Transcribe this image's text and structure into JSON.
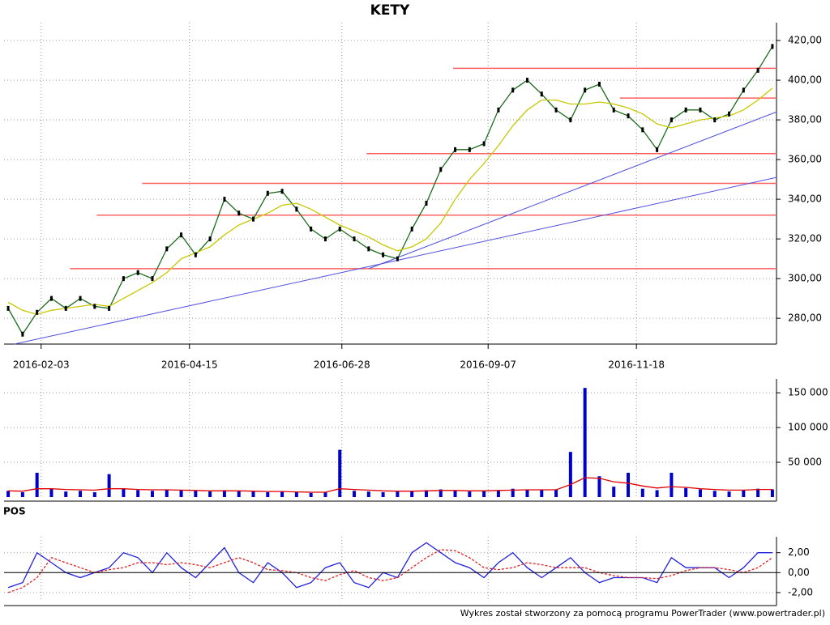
{
  "footer": "Wykres został stworzony za pomocą programu PowerTrader (www.powertrader.pl)",
  "chart_data": [
    {
      "type": "line",
      "title": "KETY",
      "x": [
        "2016-01-18",
        "2016-01-25",
        "2016-02-01",
        "2016-02-08",
        "2016-02-15",
        "2016-02-22",
        "2016-02-29",
        "2016-03-07",
        "2016-03-14",
        "2016-03-21",
        "2016-03-28",
        "2016-04-04",
        "2016-04-11",
        "2016-04-18",
        "2016-04-25",
        "2016-05-02",
        "2016-05-09",
        "2016-05-16",
        "2016-05-23",
        "2016-05-30",
        "2016-06-06",
        "2016-06-13",
        "2016-06-20",
        "2016-06-27",
        "2016-07-04",
        "2016-07-11",
        "2016-07-18",
        "2016-07-25",
        "2016-08-01",
        "2016-08-08",
        "2016-08-15",
        "2016-08-22",
        "2016-08-29",
        "2016-09-05",
        "2016-09-12",
        "2016-09-19",
        "2016-09-26",
        "2016-10-03",
        "2016-10-10",
        "2016-10-17",
        "2016-10-24",
        "2016-10-31",
        "2016-11-07",
        "2016-11-14",
        "2016-11-21",
        "2016-11-28",
        "2016-12-05",
        "2016-12-12",
        "2016-12-19",
        "2016-12-26",
        "2017-01-02",
        "2017-01-09",
        "2017-01-16",
        "2017-01-23"
      ],
      "series": [
        {
          "color": "#1a6b1a",
          "values": [
            285,
            272,
            283,
            290,
            285,
            290,
            286,
            285,
            300,
            303,
            300,
            315,
            322,
            312,
            320,
            340,
            333,
            330,
            343,
            344,
            335,
            325,
            320,
            325,
            320,
            315,
            312,
            310,
            325,
            338,
            355,
            365,
            365,
            368,
            385,
            395,
            400,
            393,
            385,
            380,
            395,
            398,
            385,
            382,
            375,
            365,
            380,
            385,
            385,
            380,
            383,
            395,
            405,
            417
          ]
        },
        {
          "color": "#c8c800",
          "values": [
            288,
            284,
            282,
            284,
            285,
            286,
            287,
            286,
            290,
            294,
            298,
            303,
            310,
            313,
            316,
            322,
            327,
            330,
            333,
            337,
            338,
            335,
            331,
            327,
            324,
            321,
            317,
            314,
            316,
            320,
            328,
            340,
            350,
            358,
            367,
            377,
            385,
            390,
            390,
            388,
            388,
            389,
            388,
            386,
            383,
            378,
            376,
            378,
            380,
            381,
            382,
            385,
            390,
            396
          ]
        }
      ],
      "xlim": [
        "2016-01-16",
        "2017-01-25"
      ],
      "xticks": [
        "2016-02-03",
        "2016-04-15",
        "2016-06-28",
        "2016-09-07",
        "2016-11-18"
      ],
      "ylim": [
        267,
        429
      ],
      "yticks": [
        {
          "value": 280,
          "label": "280,00"
        },
        {
          "value": 300,
          "label": "300,00"
        },
        {
          "value": 320,
          "label": "320,00"
        },
        {
          "value": 340,
          "label": "340,00"
        },
        {
          "value": 360,
          "label": "360,00"
        },
        {
          "value": 380,
          "label": "380,00"
        },
        {
          "value": 400,
          "label": "400,00"
        },
        {
          "value": 420,
          "label": "420,00"
        }
      ],
      "grid": true,
      "hline_color": "#ff6060",
      "hlines": [
        {
          "value": 406,
          "from": "2016-08-21"
        },
        {
          "value": 391,
          "from": "2016-11-10"
        },
        {
          "value": 363,
          "from": "2016-07-10"
        },
        {
          "value": 348,
          "from": "2016-03-23"
        },
        {
          "value": 332,
          "from": "2016-03-01"
        },
        {
          "value": 305,
          "from": "2016-02-17"
        }
      ],
      "trend_color": "#5050e0",
      "trendlines": [
        {
          "x": [
            "2016-01-21",
            "2017-01-25"
          ],
          "y": [
            267,
            351
          ]
        },
        {
          "x": [
            "2016-07-11",
            "2017-01-25"
          ],
          "y": [
            305,
            384
          ]
        }
      ]
    },
    {
      "type": "bar",
      "values": [
        9000,
        7000,
        35000,
        12000,
        8000,
        9000,
        7000,
        33000,
        12000,
        10000,
        9000,
        11000,
        10000,
        9000,
        8000,
        10000,
        9000,
        8000,
        7000,
        8000,
        7000,
        6000,
        7000,
        68000,
        9000,
        8000,
        7000,
        8000,
        9000,
        10000,
        11000,
        9000,
        8000,
        9000,
        10000,
        12000,
        11000,
        10000,
        11000,
        65000,
        157000,
        30000,
        15000,
        35000,
        12000,
        10000,
        35000,
        13000,
        11000,
        9000,
        8000,
        10000,
        12000,
        11000
      ],
      "color": "#0000cc",
      "ma": [
        9000,
        8500,
        12000,
        12000,
        11000,
        10500,
        10000,
        12000,
        12000,
        11000,
        10500,
        10500,
        10000,
        9500,
        9000,
        9000,
        9000,
        8500,
        8000,
        8000,
        7500,
        7000,
        7000,
        12000,
        11000,
        10000,
        9000,
        8500,
        8500,
        9000,
        9500,
        9500,
        9000,
        9000,
        9500,
        10000,
        10500,
        10500,
        10500,
        18000,
        28000,
        27000,
        22000,
        20000,
        16000,
        13000,
        15000,
        14000,
        12000,
        11000,
        10000,
        10000,
        11000,
        11000
      ],
      "ma_color": "#e00000",
      "ylim": [
        0,
        170000
      ],
      "yticks": [
        {
          "value": 50000,
          "label": "50 000"
        },
        {
          "value": 100000,
          "label": "100 000"
        },
        {
          "value": 150000,
          "label": "150 000"
        }
      ],
      "grid": true
    },
    {
      "type": "line",
      "title": "POS",
      "series": [
        {
          "color": "#2020e0",
          "values": [
            -1.5,
            -1,
            2,
            1,
            0,
            -0.5,
            0,
            0.5,
            2,
            1.5,
            0,
            2,
            0.5,
            -0.5,
            1,
            2.5,
            0,
            -1,
            1,
            0,
            -1.5,
            -1,
            0.5,
            1,
            -1,
            -1.5,
            0,
            -0.5,
            2,
            3,
            2,
            1,
            0.5,
            -0.5,
            1,
            2,
            0.5,
            -0.5,
            0.5,
            1.5,
            0,
            -1,
            -0.5,
            -0.5,
            -0.5,
            -1,
            1.5,
            0.5,
            0.5,
            0.5,
            -0.5,
            0.5,
            2,
            2
          ]
        },
        {
          "color": "#e02020",
          "values": [
            -2,
            -1.5,
            -0.5,
            1.5,
            1,
            0.5,
            0,
            0.3,
            0.5,
            1,
            1,
            0.8,
            1,
            0.8,
            0.5,
            1,
            1.5,
            1,
            0.3,
            0.2,
            0,
            -0.5,
            -0.8,
            -0.2,
            0.2,
            -0.5,
            -0.8,
            -0.5,
            0.5,
            1.5,
            2.3,
            2.2,
            1.5,
            0.5,
            0.3,
            0.5,
            1,
            0.8,
            0.5,
            0.5,
            0.5,
            0,
            -0.3,
            -0.5,
            -0.5,
            -0.6,
            -0.3,
            0.2,
            0.5,
            0.5,
            0.3,
            0,
            0.5,
            1.5
          ]
        }
      ],
      "ylim": [
        -2.9,
        3.6
      ],
      "yticks": [
        {
          "value": -2,
          "label": "-2,00"
        },
        {
          "value": 0,
          "label": "0,00"
        },
        {
          "value": 2,
          "label": "2,00"
        }
      ],
      "grid": true
    }
  ]
}
